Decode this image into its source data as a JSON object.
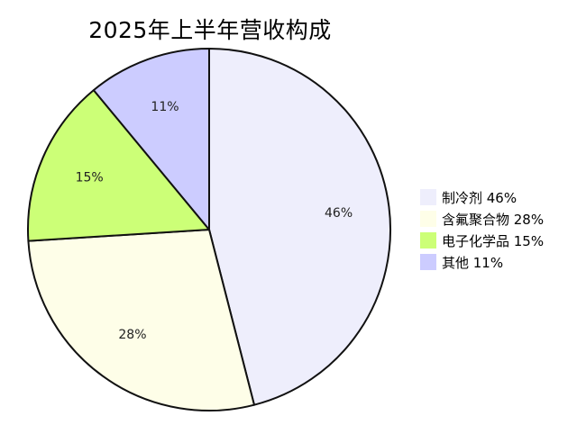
{
  "chart_data": {
    "type": "pie",
    "title": "2025年上半年营收构成",
    "categories": [
      "制冷剂",
      "含氟聚合物",
      "电子化学品",
      "其他"
    ],
    "values": [
      46,
      28,
      15,
      11
    ],
    "value_labels": [
      "46%",
      "28%",
      "15%",
      "11%"
    ],
    "legend_labels": [
      "制冷剂 46%",
      "含氟聚合物 28%",
      "电子化学品 15%",
      "其他 11%"
    ],
    "colors": [
      "#eeeefc",
      "#fefee8",
      "#ccff77",
      "#ccccff"
    ],
    "legend_position": "right",
    "start_angle": "12 o'clock",
    "direction": "clockwise"
  }
}
